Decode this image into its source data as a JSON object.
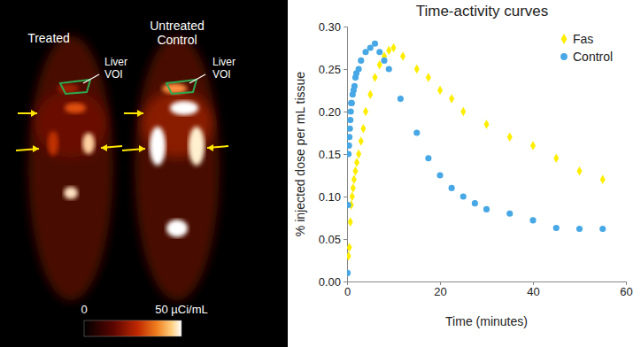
{
  "chart_data": {
    "type": "scatter",
    "title": "Time-activity curves",
    "x_label": "Time (minutes)",
    "y_label": "% injected dose per mL tissue",
    "xlim": [
      0,
      60
    ],
    "xticks": [
      0,
      20,
      40,
      60
    ],
    "ylim": [
      0,
      0.3
    ],
    "yticks": [
      {
        "value": 0,
        "label": "0.00"
      },
      {
        "value": 0.05,
        "label": "0.05"
      },
      {
        "value": 0.1,
        "label": "0.10"
      },
      {
        "value": 0.15,
        "label": "0.15"
      },
      {
        "value": 0.2,
        "label": "0.20"
      },
      {
        "value": 0.25,
        "label": "0.25"
      },
      {
        "value": 0.3,
        "label": "0.30"
      }
    ],
    "legend": "upper right",
    "series": [
      {
        "name": "Fas",
        "color": "#ffee00",
        "marker": "diamond",
        "x": [
          0.3,
          0.5,
          0.7,
          0.9,
          1.1,
          1.3,
          1.5,
          1.8,
          2.1,
          2.5,
          3,
          3.5,
          4,
          5,
          6,
          7,
          8,
          9,
          10,
          12,
          15,
          17.5,
          20,
          22.5,
          25,
          30,
          35,
          40,
          45,
          50,
          55
        ],
        "values": [
          0.03,
          0.04,
          0.07,
          0.09,
          0.1,
          0.11,
          0.12,
          0.13,
          0.14,
          0.15,
          0.165,
          0.18,
          0.2,
          0.22,
          0.24,
          0.255,
          0.265,
          0.272,
          0.275,
          0.265,
          0.25,
          0.24,
          0.225,
          0.215,
          0.2,
          0.185,
          0.17,
          0.16,
          0.145,
          0.13,
          0.12
        ]
      },
      {
        "name": "Control",
        "color": "#47a8e5",
        "marker": "circle",
        "x": [
          0.1,
          0.2,
          0.3,
          0.4,
          0.5,
          0.6,
          0.7,
          0.8,
          0.9,
          1.0,
          1.2,
          1.4,
          1.6,
          1.8,
          2.0,
          2.5,
          3,
          4,
          5,
          6,
          7,
          8,
          9,
          11.5,
          15,
          17.5,
          20,
          22.5,
          25,
          27.5,
          30,
          35,
          40,
          45,
          50,
          55
        ],
        "values": [
          0.01,
          0.09,
          0.15,
          0.16,
          0.17,
          0.18,
          0.19,
          0.2,
          0.21,
          0.21,
          0.22,
          0.225,
          0.23,
          0.24,
          0.245,
          0.25,
          0.26,
          0.27,
          0.275,
          0.28,
          0.27,
          0.26,
          0.25,
          0.215,
          0.175,
          0.145,
          0.125,
          0.11,
          0.1,
          0.092,
          0.085,
          0.08,
          0.072,
          0.063,
          0.062,
          0.062
        ]
      }
    ]
  },
  "image_panel": {
    "panels": [
      "Treated",
      "Untreated Control"
    ],
    "roi_labels": [
      "Liver VOI",
      "Liver VOI"
    ],
    "colorbar": {
      "range": [
        0,
        50
      ],
      "ticks": [
        0,
        {
          "value": 50,
          "label": "50 µCi/mL"
        }
      ]
    }
  }
}
